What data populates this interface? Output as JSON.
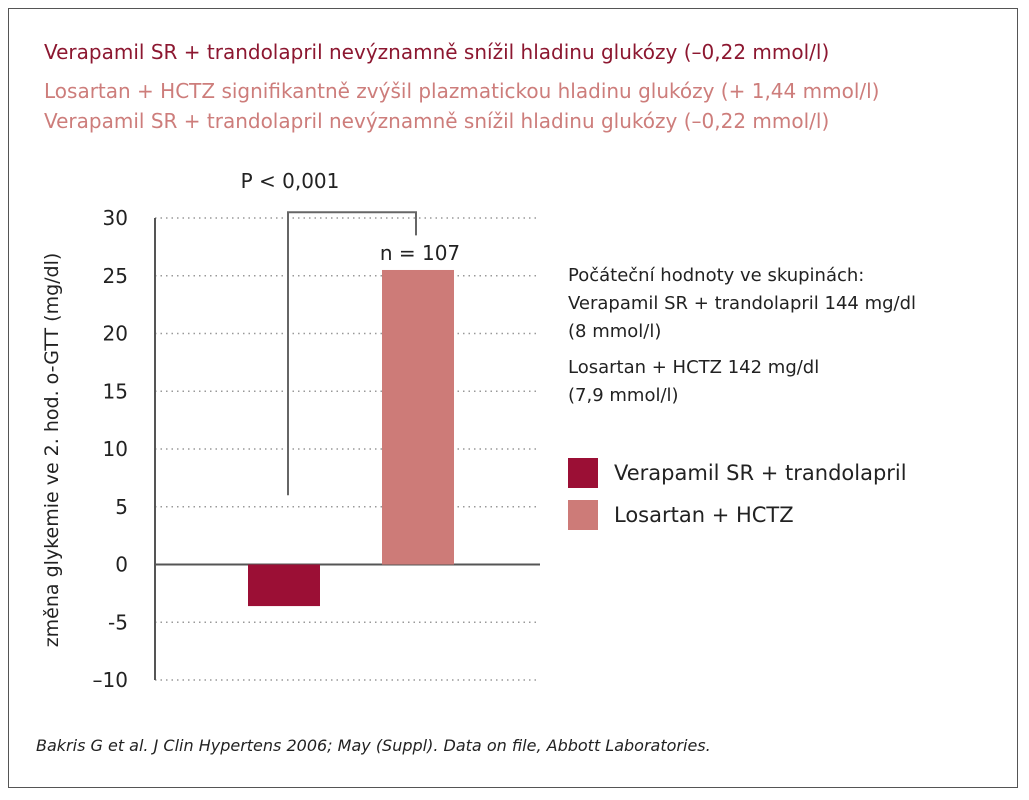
{
  "headings": [
    "Verapamil SR + trandolapril nevýznamně snížil hladinu glukózy (–0,22 mmol/l)",
    "Losartan + HCTZ signifikantně zvýšil plazmatickou hladinu glukózy (+ 1,44 mmol/l)",
    "Verapamil SR + trandolapril nevýznamně snížil hladinu glukózy (–0,22 mmol/l)"
  ],
  "info": {
    "title": "Počáteční hodnoty ve skupinách:",
    "line1a": "Verapamil SR + trandolapril 144 mg/dl",
    "line1b": "(8 mmol/l)",
    "line2a": "Losartan + HCTZ 142 mg/dl",
    "line2b": "(7,9 mmol/l)"
  },
  "source": "Bakris G et al. J Clin Hypertens 2006; May (Suppl). Data on file, Abbott Laboratories.",
  "colors": {
    "verapamil": "#9b0f35",
    "losartan": "#cd7b78",
    "heading_dark": "#8c1730",
    "heading_light": "#cd7d7b"
  },
  "chart_data": {
    "type": "bar",
    "categories": [
      "Verapamil SR + trandolapril",
      "Losartan + HCTZ"
    ],
    "values": [
      -3.6,
      25.5
    ],
    "ylabel": "změna glykemie ve 2. hod. o-GTT (mg/dl)",
    "ylim": [
      -10,
      30
    ],
    "yticks": [
      30,
      25,
      20,
      15,
      10,
      5,
      0,
      -5,
      -10
    ],
    "ytick_labels": [
      "30",
      "25",
      "20",
      "15",
      "10",
      "5",
      "0",
      "-5",
      "–10"
    ],
    "grid": true,
    "annotations": {
      "pvalue": "P < 0,001",
      "n": "n = 107"
    },
    "legend": [
      {
        "name": "Verapamil SR + trandolapril",
        "color": "#9b0f35"
      },
      {
        "name": "Losartan + HCTZ",
        "color": "#cd7b78"
      }
    ],
    "legend_position": "right"
  }
}
